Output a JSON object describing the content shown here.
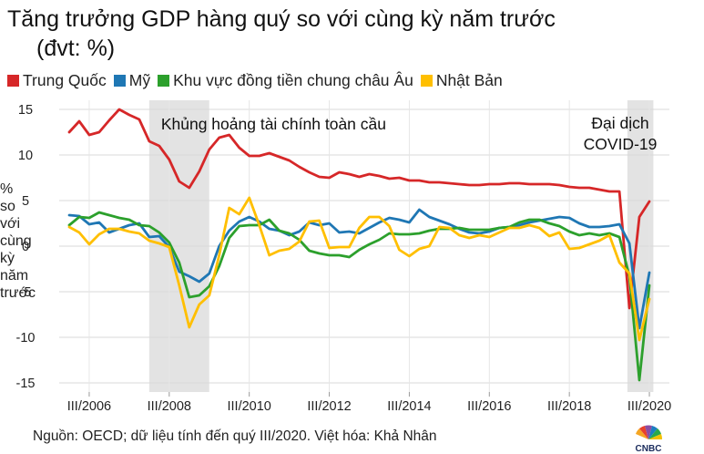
{
  "chart_data": {
    "type": "line",
    "title": "Tăng trưởng GDP hàng quý so với cùng kỳ năm trước",
    "subtitle": "(đvt: %)",
    "ylabel": [
      "%",
      "so",
      "với",
      "cùng",
      "kỳ",
      "năm",
      "trước"
    ],
    "ylim": [
      -16,
      16
    ],
    "yticks": [
      15,
      10,
      5,
      0,
      -5,
      -10,
      -15
    ],
    "xlim": [
      2005.75,
      2021.0
    ],
    "xticks": [
      {
        "x": 2006.5,
        "label": "III/2006"
      },
      {
        "x": 2008.5,
        "label": "III/2008"
      },
      {
        "x": 2010.5,
        "label": "III/2010"
      },
      {
        "x": 2012.5,
        "label": "III/2012"
      },
      {
        "x": 2014.5,
        "label": "III/2014"
      },
      {
        "x": 2016.5,
        "label": "III/2016"
      },
      {
        "x": 2018.5,
        "label": "III/2018"
      },
      {
        "x": 2020.5,
        "label": "III/2020"
      }
    ],
    "grid": true,
    "legend_position": "top",
    "shaded_regions": [
      {
        "start": 2008.0,
        "end": 2009.5,
        "label": "Khủng hoảng tài chính toàn cầu"
      },
      {
        "start": 2019.95,
        "end": 2020.6,
        "label_lines": [
          "Đại dịch",
          "COVID-19"
        ]
      }
    ],
    "series": [
      {
        "name": "Trung Quốc",
        "color": "#d62728",
        "points": [
          [
            2006.0,
            12.5
          ],
          [
            2006.25,
            13.7
          ],
          [
            2006.5,
            12.2
          ],
          [
            2006.75,
            12.5
          ],
          [
            2007.0,
            13.8
          ],
          [
            2007.25,
            15.0
          ],
          [
            2007.5,
            14.4
          ],
          [
            2007.75,
            13.9
          ],
          [
            2008.0,
            11.5
          ],
          [
            2008.25,
            11.0
          ],
          [
            2008.5,
            9.5
          ],
          [
            2008.75,
            7.1
          ],
          [
            2009.0,
            6.4
          ],
          [
            2009.25,
            8.2
          ],
          [
            2009.5,
            10.6
          ],
          [
            2009.75,
            11.9
          ],
          [
            2010.0,
            12.2
          ],
          [
            2010.25,
            10.8
          ],
          [
            2010.5,
            9.9
          ],
          [
            2010.75,
            9.9
          ],
          [
            2011.0,
            10.2
          ],
          [
            2011.25,
            9.8
          ],
          [
            2011.5,
            9.4
          ],
          [
            2011.75,
            8.7
          ],
          [
            2012.0,
            8.1
          ],
          [
            2012.25,
            7.6
          ],
          [
            2012.5,
            7.5
          ],
          [
            2012.75,
            8.1
          ],
          [
            2013.0,
            7.9
          ],
          [
            2013.25,
            7.6
          ],
          [
            2013.5,
            7.9
          ],
          [
            2013.75,
            7.7
          ],
          [
            2014.0,
            7.4
          ],
          [
            2014.25,
            7.5
          ],
          [
            2014.5,
            7.2
          ],
          [
            2014.75,
            7.2
          ],
          [
            2015.0,
            7.0
          ],
          [
            2015.25,
            7.0
          ],
          [
            2015.5,
            6.9
          ],
          [
            2015.75,
            6.8
          ],
          [
            2016.0,
            6.7
          ],
          [
            2016.25,
            6.7
          ],
          [
            2016.5,
            6.8
          ],
          [
            2016.75,
            6.8
          ],
          [
            2017.0,
            6.9
          ],
          [
            2017.25,
            6.9
          ],
          [
            2017.5,
            6.8
          ],
          [
            2017.75,
            6.8
          ],
          [
            2018.0,
            6.8
          ],
          [
            2018.25,
            6.7
          ],
          [
            2018.5,
            6.5
          ],
          [
            2018.75,
            6.4
          ],
          [
            2019.0,
            6.4
          ],
          [
            2019.25,
            6.2
          ],
          [
            2019.5,
            6.0
          ],
          [
            2019.75,
            6.0
          ],
          [
            2020.0,
            -6.8
          ],
          [
            2020.25,
            3.2
          ],
          [
            2020.5,
            4.9
          ]
        ]
      },
      {
        "name": "Mỹ",
        "color": "#1f77b4",
        "points": [
          [
            2006.0,
            3.4
          ],
          [
            2006.25,
            3.3
          ],
          [
            2006.5,
            2.4
          ],
          [
            2006.75,
            2.6
          ],
          [
            2007.0,
            1.5
          ],
          [
            2007.25,
            1.9
          ],
          [
            2007.5,
            2.3
          ],
          [
            2007.75,
            2.5
          ],
          [
            2008.0,
            1.0
          ],
          [
            2008.25,
            1.1
          ],
          [
            2008.5,
            -0.1
          ],
          [
            2008.75,
            -2.8
          ],
          [
            2009.0,
            -3.3
          ],
          [
            2009.25,
            -3.9
          ],
          [
            2009.5,
            -3.0
          ],
          [
            2009.75,
            0.0
          ],
          [
            2010.0,
            1.7
          ],
          [
            2010.25,
            2.7
          ],
          [
            2010.5,
            3.2
          ],
          [
            2010.75,
            2.7
          ],
          [
            2011.0,
            1.9
          ],
          [
            2011.25,
            1.7
          ],
          [
            2011.5,
            1.2
          ],
          [
            2011.75,
            1.6
          ],
          [
            2012.0,
            2.6
          ],
          [
            2012.25,
            2.3
          ],
          [
            2012.5,
            2.5
          ],
          [
            2012.75,
            1.5
          ],
          [
            2013.0,
            1.6
          ],
          [
            2013.25,
            1.4
          ],
          [
            2013.5,
            2.0
          ],
          [
            2013.75,
            2.6
          ],
          [
            2014.0,
            3.1
          ],
          [
            2014.25,
            2.9
          ],
          [
            2014.5,
            2.6
          ],
          [
            2014.75,
            4.0
          ],
          [
            2015.0,
            3.2
          ],
          [
            2015.25,
            2.8
          ],
          [
            2015.5,
            2.4
          ],
          [
            2015.75,
            1.9
          ],
          [
            2016.0,
            1.5
          ],
          [
            2016.25,
            1.4
          ],
          [
            2016.5,
            1.6
          ],
          [
            2016.75,
            2.0
          ],
          [
            2017.0,
            2.1
          ],
          [
            2017.25,
            2.3
          ],
          [
            2017.5,
            2.6
          ],
          [
            2017.75,
            2.8
          ],
          [
            2018.0,
            3.0
          ],
          [
            2018.25,
            3.2
          ],
          [
            2018.5,
            3.1
          ],
          [
            2018.75,
            2.5
          ],
          [
            2019.0,
            2.1
          ],
          [
            2019.25,
            2.1
          ],
          [
            2019.5,
            2.2
          ],
          [
            2019.75,
            2.4
          ],
          [
            2020.0,
            0.3
          ],
          [
            2020.25,
            -9.0
          ],
          [
            2020.5,
            -2.9
          ]
        ]
      },
      {
        "name": "Khu vực đồng tiền chung châu Âu",
        "color": "#2ca02c",
        "points": [
          [
            2006.0,
            2.3
          ],
          [
            2006.25,
            3.2
          ],
          [
            2006.5,
            3.1
          ],
          [
            2006.75,
            3.7
          ],
          [
            2007.0,
            3.4
          ],
          [
            2007.25,
            3.1
          ],
          [
            2007.5,
            2.9
          ],
          [
            2007.75,
            2.3
          ],
          [
            2008.0,
            2.2
          ],
          [
            2008.25,
            1.5
          ],
          [
            2008.5,
            0.4
          ],
          [
            2008.75,
            -1.8
          ],
          [
            2009.0,
            -5.6
          ],
          [
            2009.25,
            -5.4
          ],
          [
            2009.5,
            -4.4
          ],
          [
            2009.75,
            -2.2
          ],
          [
            2010.0,
            0.9
          ],
          [
            2010.25,
            2.2
          ],
          [
            2010.5,
            2.3
          ],
          [
            2010.75,
            2.3
          ],
          [
            2011.0,
            2.9
          ],
          [
            2011.25,
            1.7
          ],
          [
            2011.5,
            1.4
          ],
          [
            2011.75,
            0.7
          ],
          [
            2012.0,
            -0.5
          ],
          [
            2012.25,
            -0.8
          ],
          [
            2012.5,
            -1.0
          ],
          [
            2012.75,
            -1.0
          ],
          [
            2013.0,
            -1.2
          ],
          [
            2013.25,
            -0.4
          ],
          [
            2013.5,
            0.2
          ],
          [
            2013.75,
            0.7
          ],
          [
            2014.0,
            1.4
          ],
          [
            2014.25,
            1.3
          ],
          [
            2014.5,
            1.3
          ],
          [
            2014.75,
            1.4
          ],
          [
            2015.0,
            1.7
          ],
          [
            2015.25,
            1.9
          ],
          [
            2015.5,
            1.9
          ],
          [
            2015.75,
            2.0
          ],
          [
            2016.0,
            1.8
          ],
          [
            2016.25,
            1.8
          ],
          [
            2016.5,
            1.8
          ],
          [
            2016.75,
            2.0
          ],
          [
            2017.0,
            2.1
          ],
          [
            2017.25,
            2.6
          ],
          [
            2017.5,
            2.9
          ],
          [
            2017.75,
            2.9
          ],
          [
            2018.0,
            2.5
          ],
          [
            2018.25,
            2.2
          ],
          [
            2018.5,
            1.6
          ],
          [
            2018.75,
            1.2
          ],
          [
            2019.0,
            1.4
          ],
          [
            2019.25,
            1.2
          ],
          [
            2019.5,
            1.4
          ],
          [
            2019.75,
            1.0
          ],
          [
            2020.0,
            -3.3
          ],
          [
            2020.25,
            -14.7
          ],
          [
            2020.5,
            -4.3
          ]
        ]
      },
      {
        "name": "Nhật Bản",
        "color": "#ffbf00",
        "points": [
          [
            2006.0,
            2.1
          ],
          [
            2006.25,
            1.5
          ],
          [
            2006.5,
            0.2
          ],
          [
            2006.75,
            1.3
          ],
          [
            2007.0,
            1.9
          ],
          [
            2007.25,
            1.9
          ],
          [
            2007.5,
            1.6
          ],
          [
            2007.75,
            1.4
          ],
          [
            2008.0,
            0.6
          ],
          [
            2008.25,
            0.3
          ],
          [
            2008.5,
            -0.1
          ],
          [
            2008.75,
            -4.3
          ],
          [
            2009.0,
            -8.9
          ],
          [
            2009.25,
            -6.4
          ],
          [
            2009.5,
            -5.4
          ],
          [
            2009.75,
            -1.0
          ],
          [
            2010.0,
            4.2
          ],
          [
            2010.25,
            3.5
          ],
          [
            2010.5,
            5.3
          ],
          [
            2010.75,
            2.3
          ],
          [
            2011.0,
            -1.0
          ],
          [
            2011.25,
            -0.5
          ],
          [
            2011.5,
            -0.3
          ],
          [
            2011.75,
            0.5
          ],
          [
            2012.0,
            2.7
          ],
          [
            2012.25,
            2.8
          ],
          [
            2012.5,
            -0.2
          ],
          [
            2012.75,
            -0.1
          ],
          [
            2013.0,
            -0.1
          ],
          [
            2013.25,
            2.0
          ],
          [
            2013.5,
            3.2
          ],
          [
            2013.75,
            3.2
          ],
          [
            2014.0,
            2.2
          ],
          [
            2014.25,
            -0.4
          ],
          [
            2014.5,
            -1.1
          ],
          [
            2014.75,
            -0.3
          ],
          [
            2015.0,
            0.0
          ],
          [
            2015.25,
            2.1
          ],
          [
            2015.5,
            2.0
          ],
          [
            2015.75,
            1.2
          ],
          [
            2016.0,
            0.9
          ],
          [
            2016.25,
            1.2
          ],
          [
            2016.5,
            1.0
          ],
          [
            2016.75,
            1.5
          ],
          [
            2017.0,
            2.0
          ],
          [
            2017.25,
            2.0
          ],
          [
            2017.5,
            2.3
          ],
          [
            2017.75,
            2.0
          ],
          [
            2018.0,
            1.1
          ],
          [
            2018.25,
            1.5
          ],
          [
            2018.5,
            -0.3
          ],
          [
            2018.75,
            -0.2
          ],
          [
            2019.0,
            0.2
          ],
          [
            2019.25,
            0.6
          ],
          [
            2019.5,
            1.2
          ],
          [
            2019.75,
            -1.8
          ],
          [
            2020.0,
            -3.0
          ],
          [
            2020.25,
            -10.3
          ],
          [
            2020.5,
            -5.8
          ]
        ]
      }
    ]
  },
  "source_text": "Nguồn: OECD; dữ liệu tính đến quý III/2020. Việt hóa: Khả Nhân",
  "logo_text": "CNBC"
}
